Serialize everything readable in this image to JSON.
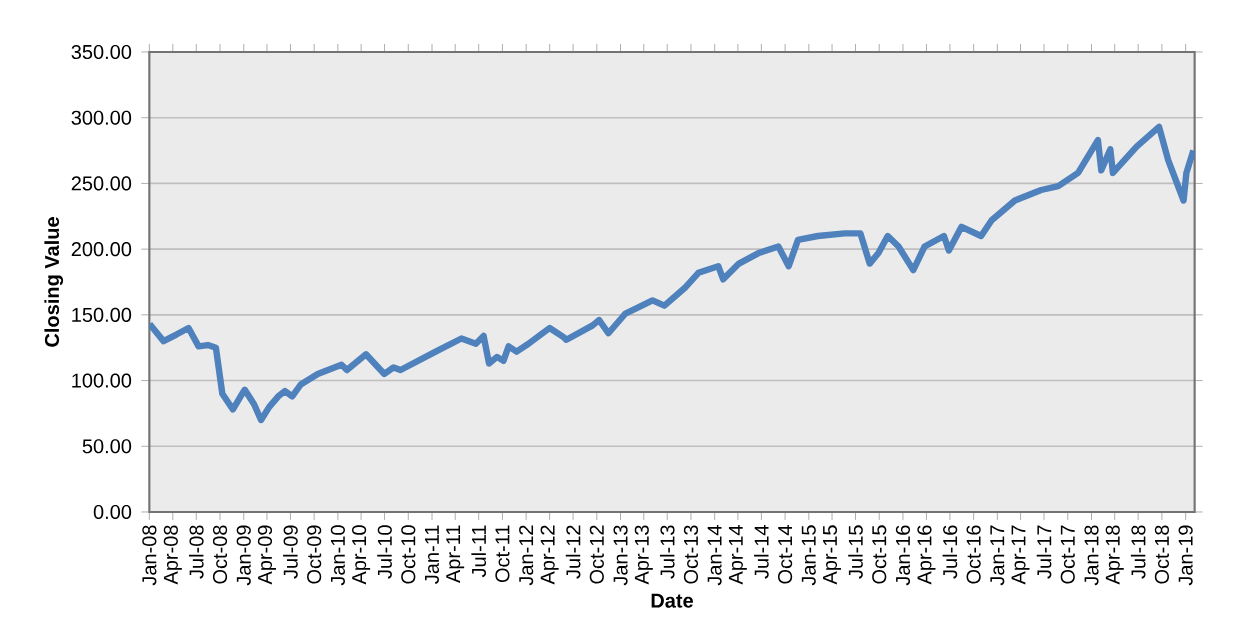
{
  "chart_data": {
    "type": "line",
    "xlabel": "Date",
    "ylabel": "Closing Value",
    "grid": "y",
    "legend": false,
    "marker": "none",
    "line_style": "solid",
    "ylim": [
      0,
      350
    ],
    "yticks": [
      {
        "value": 0,
        "label": "0.00"
      },
      {
        "value": 50,
        "label": "50.00"
      },
      {
        "value": 100,
        "label": "100.00"
      },
      {
        "value": 150,
        "label": "150.00"
      },
      {
        "value": 200,
        "label": "200.00"
      },
      {
        "value": 250,
        "label": "250.00"
      },
      {
        "value": 300,
        "label": "300.00"
      },
      {
        "value": 350,
        "label": "350.00"
      }
    ],
    "xlim": [
      "2008-01-01",
      "2019-02-05"
    ],
    "xticks": [
      {
        "value": "2008-01",
        "label": "Jan-08"
      },
      {
        "value": "2008-04",
        "label": "Apr-08"
      },
      {
        "value": "2008-07",
        "label": "Jul-08"
      },
      {
        "value": "2008-10",
        "label": "Oct-08"
      },
      {
        "value": "2009-01",
        "label": "Jan-09"
      },
      {
        "value": "2009-04",
        "label": "Apr-09"
      },
      {
        "value": "2009-07",
        "label": "Jul-09"
      },
      {
        "value": "2009-10",
        "label": "Oct-09"
      },
      {
        "value": "2010-01",
        "label": "Jan-10"
      },
      {
        "value": "2010-04",
        "label": "Apr-10"
      },
      {
        "value": "2010-07",
        "label": "Jul-10"
      },
      {
        "value": "2010-10",
        "label": "Oct-10"
      },
      {
        "value": "2011-01",
        "label": "Jan-11"
      },
      {
        "value": "2011-04",
        "label": "Apr-11"
      },
      {
        "value": "2011-07",
        "label": "Jul-11"
      },
      {
        "value": "2011-10",
        "label": "Oct-11"
      },
      {
        "value": "2012-01",
        "label": "Jan-12"
      },
      {
        "value": "2012-04",
        "label": "Apr-12"
      },
      {
        "value": "2012-07",
        "label": "Jul-12"
      },
      {
        "value": "2012-10",
        "label": "Oct-12"
      },
      {
        "value": "2013-01",
        "label": "Jan-13"
      },
      {
        "value": "2013-04",
        "label": "Apr-13"
      },
      {
        "value": "2013-07",
        "label": "Jul-13"
      },
      {
        "value": "2013-10",
        "label": "Oct-13"
      },
      {
        "value": "2014-01",
        "label": "Jan-14"
      },
      {
        "value": "2014-04",
        "label": "Apr-14"
      },
      {
        "value": "2014-07",
        "label": "Jul-14"
      },
      {
        "value": "2014-10",
        "label": "Oct-14"
      },
      {
        "value": "2015-01",
        "label": "Jan-15"
      },
      {
        "value": "2015-04",
        "label": "Apr-15"
      },
      {
        "value": "2015-07",
        "label": "Jul-15"
      },
      {
        "value": "2015-10",
        "label": "Oct-15"
      },
      {
        "value": "2016-01",
        "label": "Jan-16"
      },
      {
        "value": "2016-04",
        "label": "Apr-16"
      },
      {
        "value": "2016-07",
        "label": "Jul-16"
      },
      {
        "value": "2016-10",
        "label": "Oct-16"
      },
      {
        "value": "2017-01",
        "label": "Jan-17"
      },
      {
        "value": "2017-04",
        "label": "Apr-17"
      },
      {
        "value": "2017-07",
        "label": "Jul-17"
      },
      {
        "value": "2017-10",
        "label": "Oct-17"
      },
      {
        "value": "2018-01",
        "label": "Jan-18"
      },
      {
        "value": "2018-04",
        "label": "Apr-18"
      },
      {
        "value": "2018-07",
        "label": "Jul-18"
      },
      {
        "value": "2018-10",
        "label": "Oct-18"
      },
      {
        "value": "2019-01",
        "label": "Jan-19"
      }
    ],
    "series": [
      {
        "color": "#4f81bd",
        "x": [
          "2008-01-02",
          "2008-02-25",
          "2008-04-15",
          "2008-06-01",
          "2008-07-10",
          "2008-08-15",
          "2008-09-15",
          "2008-10-10",
          "2008-11-20",
          "2008-12-20",
          "2009-01-05",
          "2009-02-10",
          "2009-03-09",
          "2009-04-10",
          "2009-05-15",
          "2009-06-10",
          "2009-07-08",
          "2009-08-10",
          "2009-10-15",
          "2010-01-15",
          "2010-02-05",
          "2010-04-20",
          "2010-06-30",
          "2010-08-05",
          "2010-09-01",
          "2011-01-15",
          "2011-04-25",
          "2011-06-20",
          "2011-07-20",
          "2011-08-10",
          "2011-09-10",
          "2011-10-05",
          "2011-10-25",
          "2011-11-25",
          "2012-01-10",
          "2012-04-01",
          "2012-05-25",
          "2012-06-05",
          "2012-09-15",
          "2012-10-10",
          "2012-11-15",
          "2013-01-20",
          "2013-05-05",
          "2013-06-20",
          "2013-09-10",
          "2013-10-30",
          "2014-01-15",
          "2014-02-03",
          "2014-04-05",
          "2014-06-20",
          "2014-09-05",
          "2014-10-15",
          "2014-11-20",
          "2015-02-05",
          "2015-05-20",
          "2015-07-20",
          "2015-08-25",
          "2015-09-28",
          "2015-11-03",
          "2015-12-15",
          "2016-02-10",
          "2016-03-25",
          "2016-06-08",
          "2016-06-27",
          "2016-08-15",
          "2016-10-30",
          "2016-12-10",
          "2017-03-10",
          "2017-06-20",
          "2017-08-25",
          "2017-11-10",
          "2018-01-26",
          "2018-02-08",
          "2018-03-15",
          "2018-03-25",
          "2018-06-25",
          "2018-09-20",
          "2018-10-25",
          "2018-12-24",
          "2019-01-04",
          "2019-01-31"
        ],
        "values": [
          143,
          130,
          135,
          140,
          126,
          127,
          125,
          90,
          78,
          88,
          93,
          82,
          70,
          80,
          88,
          92,
          88,
          97,
          105,
          112,
          108,
          120,
          105,
          110,
          108,
          122,
          132,
          128,
          134,
          113,
          118,
          115,
          126,
          122,
          128,
          140,
          133,
          131,
          142,
          146,
          136,
          151,
          161,
          157,
          171,
          182,
          187,
          177,
          189,
          197,
          202,
          187,
          207,
          210,
          212,
          212,
          189,
          197,
          210,
          202,
          184,
          202,
          210,
          199,
          217,
          210,
          222,
          237,
          245,
          248,
          258,
          283,
          260,
          276,
          258,
          278,
          293,
          268,
          237,
          258,
          275
        ]
      }
    ]
  }
}
